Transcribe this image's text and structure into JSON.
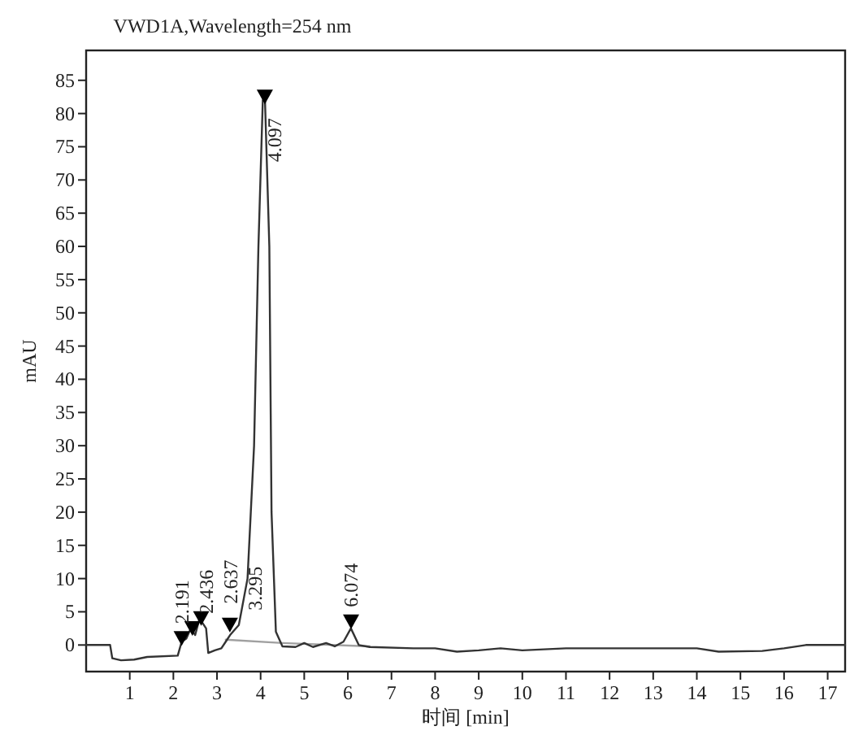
{
  "chart_data": {
    "type": "line",
    "title": "VWD1A,Wavelength=254 nm",
    "xlabel": "时间 [min]",
    "ylabel": "mAU",
    "xlim": [
      0,
      17.4
    ],
    "ylim": [
      -4,
      89.5
    ],
    "xticks": [
      1,
      2,
      3,
      4,
      5,
      6,
      7,
      8,
      9,
      10,
      11,
      12,
      13,
      14,
      15,
      16,
      17
    ],
    "yticks": [
      0,
      5,
      10,
      15,
      20,
      25,
      30,
      35,
      40,
      45,
      50,
      55,
      60,
      65,
      70,
      75,
      80,
      85
    ],
    "grid": false,
    "line_style": "solid",
    "series": [
      {
        "color": "#a0a0a0",
        "x": [
          3.2,
          4.5,
          6.5
        ],
        "values": [
          0.8,
          0.3,
          -0.2
        ]
      },
      {
        "color": "#333333",
        "x": [
          0,
          0.55,
          0.6,
          0.8,
          1.1,
          1.4,
          2.1,
          2.19,
          2.3,
          2.4,
          2.5,
          2.6,
          2.75,
          2.8,
          2.95,
          3.1,
          3.2,
          3.3,
          3.5,
          3.7,
          3.85,
          3.95,
          4.05,
          4.1,
          4.2,
          4.25,
          4.35,
          4.5,
          4.8,
          5.0,
          5.2,
          5.5,
          5.7,
          5.9,
          6.07,
          6.25,
          6.5,
          7.5,
          8,
          8.5,
          9,
          9.5,
          10,
          11,
          12,
          13,
          14,
          14.5,
          15.5,
          16,
          16.5,
          17.4
        ],
        "values": [
          0,
          0,
          -2,
          -2.3,
          -2.2,
          -1.8,
          -1.6,
          0.5,
          1,
          2.5,
          1.5,
          4,
          2.5,
          -1.2,
          -0.8,
          -0.5,
          0.5,
          1.5,
          3,
          10,
          30,
          60,
          82,
          82,
          60,
          20,
          2,
          -0.2,
          -0.3,
          0.3,
          -0.3,
          0.3,
          -0.2,
          0.5,
          2.5,
          0,
          -0.3,
          -0.5,
          -0.5,
          -1,
          -0.8,
          -0.5,
          -0.8,
          -0.5,
          -0.5,
          -0.5,
          -0.5,
          -1,
          -0.9,
          -0.5,
          0,
          0
        ]
      },
      {
        "type": "scatter",
        "marker": "triangle",
        "color": "#000000",
        "x": [
          2.191,
          2.436,
          2.637,
          3.295,
          4.097,
          6.074
        ],
        "values": [
          1,
          2.5,
          4,
          3,
          82.5,
          3.5
        ]
      }
    ],
    "annotations": [
      {
        "text": "2.191",
        "x": 2.191,
        "y": 1
      },
      {
        "text": "2.436",
        "x": 2.436,
        "y": 2.5
      },
      {
        "text": "2.637",
        "x": 2.637,
        "y": 4
      },
      {
        "text": "3.295",
        "x": 3.295,
        "y": 3
      },
      {
        "text": "4.097",
        "x": 4.097,
        "y": 82.5
      },
      {
        "text": "6.074",
        "x": 6.074,
        "y": 3.5
      }
    ]
  }
}
